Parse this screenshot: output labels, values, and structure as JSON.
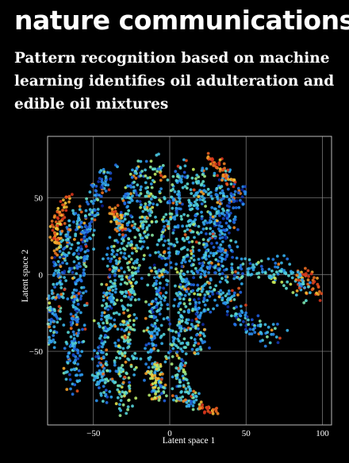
{
  "journal": "nature communications",
  "article_title": "Pattern recognition based on machine learning identifies oil adulteration and edible oil mixtures",
  "colors": {
    "background": "#000000",
    "text": "#ffffff",
    "grid": "#8a8a8a",
    "colormap": [
      "#0a1c8c",
      "#1f5fe0",
      "#2fa8f0",
      "#5fe0d0",
      "#c8ec5a",
      "#f6d23a",
      "#f08a22",
      "#d8351c"
    ]
  },
  "chart_data": {
    "type": "scatter",
    "title": "",
    "xlabel": "Latent space 1",
    "ylabel": "Latent space 2",
    "xlim": [
      -80,
      106
    ],
    "ylim": [
      -98,
      90
    ],
    "xticks": [
      -50,
      0,
      50,
      100
    ],
    "yticks": [
      -50,
      0,
      50
    ],
    "grid": true,
    "legend": "none",
    "color_scale": "jet",
    "clusters": [
      {
        "path": [
          [
            -58,
            42
          ],
          [
            -68,
            20
          ],
          [
            -72,
            -2
          ],
          [
            -76,
            -25
          ],
          [
            -78,
            -45
          ]
        ],
        "color": 0.3,
        "spread": 4
      },
      {
        "path": [
          [
            -40,
            70
          ],
          [
            -52,
            40
          ],
          [
            -58,
            10
          ],
          [
            -62,
            -30
          ],
          [
            -64,
            -60
          ],
          [
            -62,
            -72
          ]
        ],
        "color": 0.25,
        "spread": 4
      },
      {
        "path": [
          [
            -20,
            70
          ],
          [
            -30,
            40
          ],
          [
            -36,
            10
          ],
          [
            -42,
            -30
          ],
          [
            -45,
            -62
          ],
          [
            -44,
            -82
          ]
        ],
        "color": 0.3,
        "spread": 4
      },
      {
        "path": [
          [
            -8,
            72
          ],
          [
            -16,
            40
          ],
          [
            -24,
            8
          ],
          [
            -28,
            -30
          ],
          [
            -30,
            -60
          ],
          [
            -28,
            -88
          ]
        ],
        "color": 0.4,
        "spread": 5
      },
      {
        "path": [
          [
            8,
            70
          ],
          [
            2,
            40
          ],
          [
            -4,
            10
          ],
          [
            -10,
            -30
          ],
          [
            -12,
            -60
          ],
          [
            -4,
            -80
          ]
        ],
        "color": 0.3,
        "spread": 5
      },
      {
        "path": [
          [
            22,
            68
          ],
          [
            16,
            40
          ],
          [
            12,
            10
          ],
          [
            8,
            -20
          ],
          [
            4,
            -50
          ],
          [
            10,
            -80
          ],
          [
            22,
            -88
          ]
        ],
        "color": 0.35,
        "spread": 5
      },
      {
        "path": [
          [
            36,
            68
          ],
          [
            30,
            40
          ],
          [
            24,
            10
          ],
          [
            20,
            -20
          ],
          [
            16,
            -50
          ]
        ],
        "color": 0.3,
        "spread": 5
      },
      {
        "path": [
          [
            46,
            58
          ],
          [
            38,
            30
          ],
          [
            32,
            0
          ]
        ],
        "color": 0.2,
        "spread": 5
      },
      {
        "path": [
          [
            -68,
            50
          ],
          [
            -74,
            30
          ],
          [
            -75,
            15
          ]
        ],
        "color": 0.85,
        "spread": 3
      },
      {
        "path": [
          [
            -38,
            42
          ],
          [
            -30,
            30
          ]
        ],
        "color": 0.85,
        "spread": 3
      },
      {
        "path": [
          [
            26,
            76
          ],
          [
            32,
            70
          ],
          [
            40,
            60
          ]
        ],
        "color": 0.9,
        "spread": 3
      },
      {
        "path": [
          [
            86,
            2
          ],
          [
            92,
            -6
          ],
          [
            98,
            -12
          ]
        ],
        "color": 0.9,
        "spread": 4
      },
      {
        "path": [
          [
            20,
            -86
          ],
          [
            25,
            -88
          ],
          [
            30,
            -90
          ]
        ],
        "color": 0.95,
        "spread": 2
      },
      {
        "path": [
          [
            40,
            0
          ],
          [
            60,
            5
          ],
          [
            80,
            0
          ],
          [
            88,
            -12
          ]
        ],
        "color": 0.35,
        "spread": 6
      },
      {
        "path": [
          [
            30,
            -10
          ],
          [
            50,
            -30
          ],
          [
            70,
            -40
          ]
        ],
        "color": 0.25,
        "spread": 6
      },
      {
        "path": [
          [
            -10,
            -60
          ],
          [
            -8,
            -80
          ]
        ],
        "color": 0.6,
        "spread": 4
      }
    ]
  }
}
